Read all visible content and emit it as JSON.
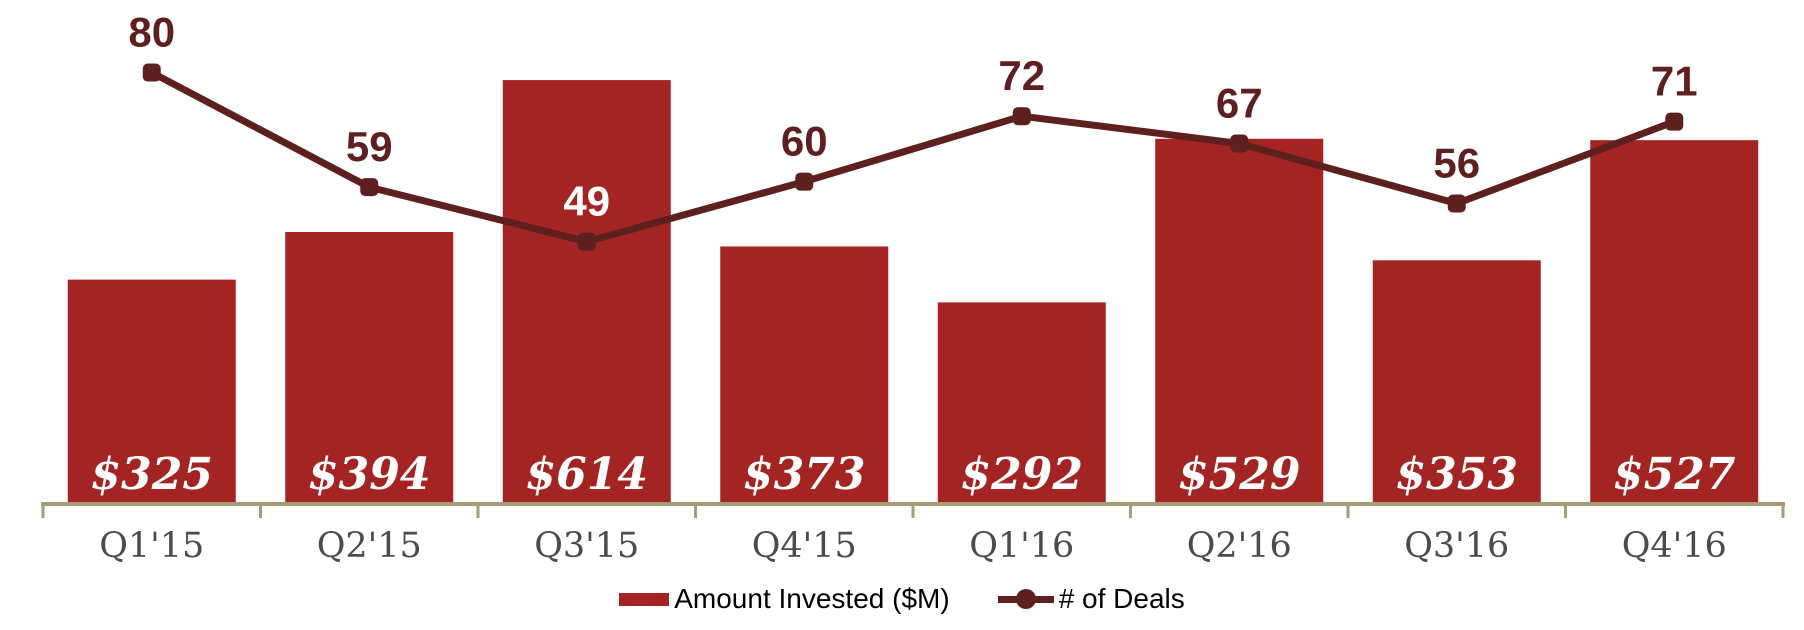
{
  "chart_data": {
    "type": "bar+line combo",
    "title": "",
    "categories": [
      "Q1'15",
      "Q2'15",
      "Q3'15",
      "Q4'15",
      "Q1'16",
      "Q2'16",
      "Q3'16",
      "Q4'16"
    ],
    "series": [
      {
        "name": "Amount Invested ($M)",
        "type": "bar",
        "values": [
          325,
          394,
          614,
          373,
          292,
          529,
          353,
          527
        ],
        "labels": [
          "$325",
          "$394",
          "$614",
          "$373",
          "$292",
          "$529",
          "$353",
          "$527"
        ],
        "color": "#A32422",
        "label_color": "#FFFFFF"
      },
      {
        "name": "# of Deals",
        "type": "line",
        "values": [
          80,
          59,
          49,
          60,
          72,
          67,
          56,
          71
        ],
        "labels": [
          "80",
          "59",
          "49",
          "60",
          "72",
          "67",
          "56",
          "71"
        ],
        "color": "#5E201E",
        "label_colors": [
          "#5E201E",
          "#5E201E",
          "#FFFFFF",
          "#5E201E",
          "#5E201E",
          "#5E201E",
          "#5E201E",
          "#5E201E"
        ]
      }
    ],
    "bar_axis_max": 730,
    "line_axis_max": 93.3,
    "grid": false,
    "legend_position": "bottom",
    "x_axis_color": "#A69B72",
    "x_label_color": "#4A4A4F"
  },
  "legend": {
    "bar_item_label": "Amount Invested ($M)",
    "line_item_label": "# of Deals"
  }
}
